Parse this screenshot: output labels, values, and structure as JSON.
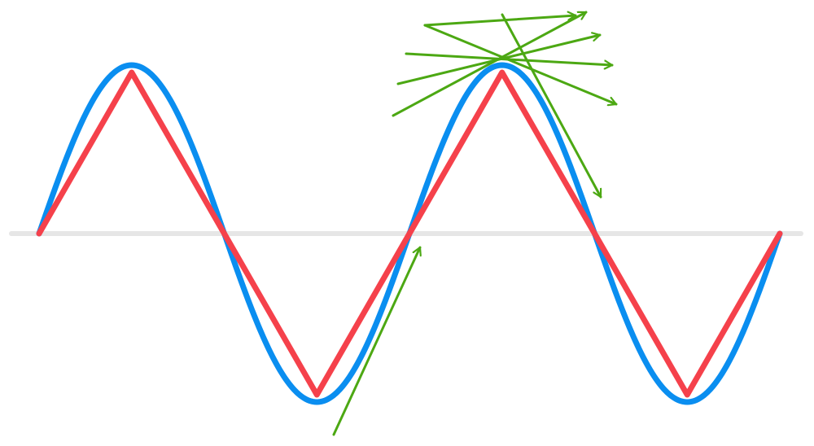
{
  "colors": {
    "background": "#ffffff",
    "axis": "#e6e6e6",
    "sine_wave": "#0a8ef0",
    "triangle_wave": "#f5414b",
    "arrows": "#4ca813"
  },
  "diagram": {
    "description_elements": [
      "axis-line",
      "sine-wave",
      "triangle-wave",
      "tangent-arrow",
      "arrow-fan"
    ],
    "cycles": 2,
    "arrows_in_fan": 6
  }
}
